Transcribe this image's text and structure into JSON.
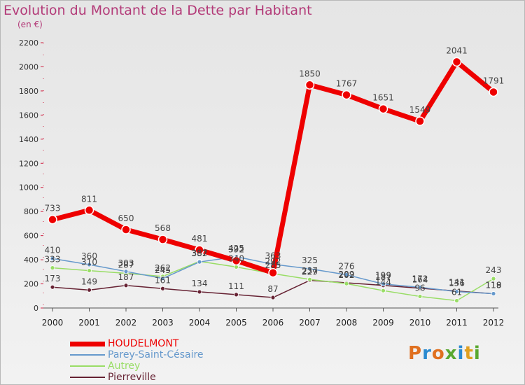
{
  "chart_data": {
    "type": "line",
    "title": "Evolution du Montant de la Dette par Habitant",
    "subtitle": "(en €)",
    "xlabel": "",
    "ylabel": "",
    "x": [
      "2000",
      "2001",
      "2002",
      "2003",
      "2004",
      "2005",
      "2006",
      "2007",
      "2008",
      "2009",
      "2010",
      "2011",
      "2012"
    ],
    "ylim": [
      0,
      2200
    ],
    "yticks": [
      0,
      200,
      400,
      600,
      800,
      1000,
      1200,
      1400,
      1600,
      1800,
      2000,
      2200
    ],
    "grid": false,
    "legend_position": "bottom-left",
    "series": [
      {
        "name": "HOUDELMONT",
        "color": "#ee0000",
        "width": 7,
        "values": [
          733,
          811,
          650,
          568,
          481,
          392,
          292,
          1850,
          1767,
          1651,
          1549,
          2041,
          1791
        ],
        "labels": [
          "733",
          "811",
          "650",
          "568",
          "481",
          "392",
          "292",
          "1850",
          "1767",
          "1651",
          "1549",
          "2041",
          "1791"
        ]
      },
      {
        "name": "Parey-Saint-Césaire",
        "color": "#6699cc",
        "width": 1.5,
        "values": [
          410,
          360,
          303,
          245,
          382,
          425,
          363,
          325,
          276,
          199,
          172,
          136,
          119
        ],
        "labels": [
          "410",
          "360",
          "303",
          "245",
          "382",
          "425",
          "363",
          "325",
          "276",
          "199",
          "172",
          "136",
          "119"
        ]
      },
      {
        "name": "Autrey",
        "color": "#99dd66",
        "width": 1.5,
        "values": [
          333,
          310,
          287,
          262,
          387,
          340,
          285,
          237,
          202,
          144,
          96,
          61,
          243
        ],
        "labels": [
          "333",
          "310",
          "287",
          "262",
          "387",
          "340",
          "285",
          "237",
          "202",
          "144",
          "96",
          "61",
          "243"
        ]
      },
      {
        "name": "Pierreville",
        "color": "#662233",
        "width": 1.5,
        "values": [
          173,
          149,
          187,
          161,
          134,
          111,
          87,
          229,
          209,
          187,
          164,
          141,
          118
        ],
        "labels": [
          "173",
          "149",
          "187",
          "161",
          "134",
          "111",
          "87",
          "229",
          "209",
          "187",
          "164",
          "141",
          "118"
        ]
      }
    ]
  },
  "logo": {
    "text": "Proxiti"
  }
}
